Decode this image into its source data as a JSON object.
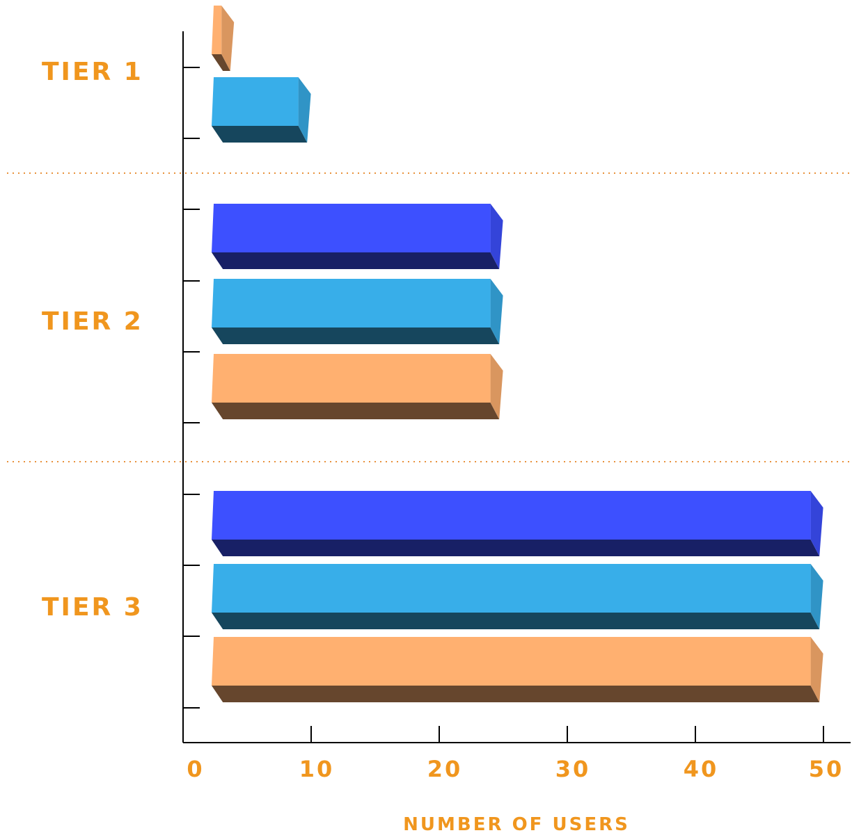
{
  "chart_data": {
    "type": "bar",
    "orientation": "horizontal",
    "style": "3d",
    "categories": [
      "TIER 1",
      "TIER 2",
      "TIER 3"
    ],
    "series": [
      {
        "color": "#3D50FF",
        "values": [
          null,
          24,
          49
        ]
      },
      {
        "color": "#38AEE9",
        "values": [
          9,
          24,
          49
        ]
      },
      {
        "color": "#FFB070",
        "values": [
          3,
          24,
          49
        ]
      }
    ],
    "xlabel": "NUMBER OF USERS",
    "ylabel": "",
    "xlim": [
      0,
      50
    ],
    "xticks": [
      "0",
      "10",
      "20",
      "30",
      "40",
      "50"
    ],
    "grid": false,
    "separators": "dotted",
    "label_color": "#F0961E",
    "separator_color": "#E8913A"
  }
}
